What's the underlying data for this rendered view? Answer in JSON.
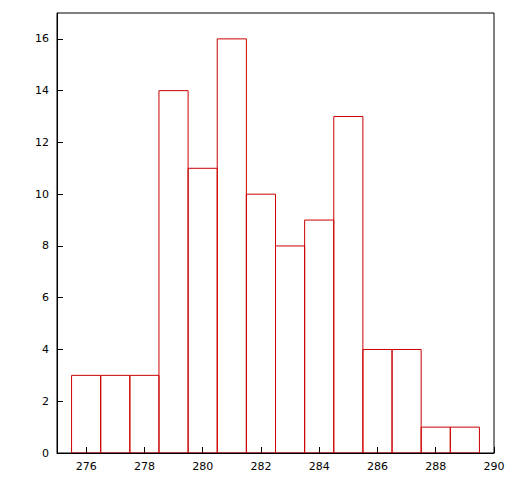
{
  "chart_data": {
    "type": "histogram",
    "bins": [
      275.5,
      276.5,
      277.5,
      278.5,
      279.5,
      280.5,
      281.5,
      282.5,
      283.5,
      284.5,
      285.5,
      286.5,
      287.5,
      288.5,
      289.5
    ],
    "counts": [
      3,
      3,
      3,
      14,
      11,
      16,
      10,
      8,
      9,
      13,
      4,
      4,
      1,
      1
    ],
    "color": "#cc0000",
    "xlim": [
      275,
      290
    ],
    "xticks": [
      276,
      278,
      280,
      282,
      284,
      286,
      288,
      290
    ],
    "ylim": [
      0,
      17
    ],
    "yticks": [
      0,
      2,
      4,
      6,
      8,
      10,
      12,
      14,
      16
    ],
    "grid": false
  }
}
